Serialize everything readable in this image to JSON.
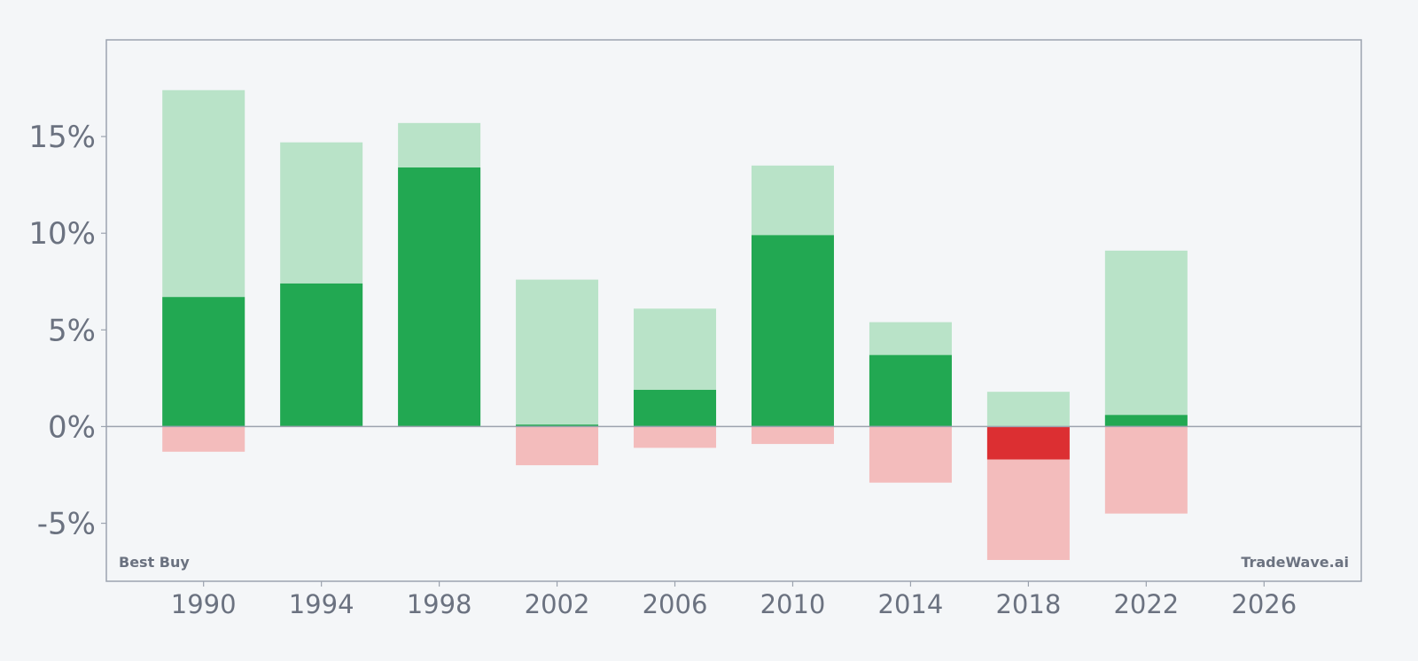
{
  "chart_data": {
    "type": "bar",
    "x": [
      1990,
      1994,
      1998,
      2002,
      2006,
      2010,
      2014,
      2018,
      2022
    ],
    "series": [
      {
        "key": "close",
        "values": [
          6.7,
          7.4,
          13.4,
          0.1,
          1.9,
          9.9,
          3.7,
          -1.7,
          0.6
        ]
      },
      {
        "key": "high",
        "values": [
          17.4,
          14.7,
          15.7,
          7.6,
          6.1,
          13.5,
          5.4,
          1.8,
          9.1
        ]
      },
      {
        "key": "low",
        "values": [
          -1.3,
          0,
          0,
          -2.0,
          -1.1,
          -0.9,
          -2.9,
          -6.9,
          -4.5
        ]
      }
    ],
    "xlim": [
      1986.7,
      2029.3
    ],
    "ylim": [
      -8,
      20
    ],
    "y_ticks": [
      {
        "value": -5,
        "label": "-5%"
      },
      {
        "value": 0,
        "label": "0%"
      },
      {
        "value": 5,
        "label": "5%"
      },
      {
        "value": 10,
        "label": "10%"
      },
      {
        "value": 15,
        "label": "15%"
      }
    ],
    "x_ticks": [
      {
        "value": 1990,
        "label": "1990"
      },
      {
        "value": 1994,
        "label": "1994"
      },
      {
        "value": 1998,
        "label": "1998"
      },
      {
        "value": 2002,
        "label": "2002"
      },
      {
        "value": 2006,
        "label": "2006"
      },
      {
        "value": 2010,
        "label": "2010"
      },
      {
        "value": 2014,
        "label": "2014"
      },
      {
        "value": 2018,
        "label": "2018"
      },
      {
        "value": 2022,
        "label": "2022"
      },
      {
        "value": 2026,
        "label": "2026"
      }
    ],
    "grid": false,
    "legend": "none",
    "corner_left": "Best Buy",
    "corner_right": "TradeWave.ai",
    "colors": {
      "positive": "#22a852",
      "negative": "#dc2f32",
      "range_positive": "#b9e3c8",
      "range_negative": "#f3bcbc",
      "axis": "#9ca3af",
      "text": "#6b7280",
      "background": "#f4f6f8"
    }
  }
}
